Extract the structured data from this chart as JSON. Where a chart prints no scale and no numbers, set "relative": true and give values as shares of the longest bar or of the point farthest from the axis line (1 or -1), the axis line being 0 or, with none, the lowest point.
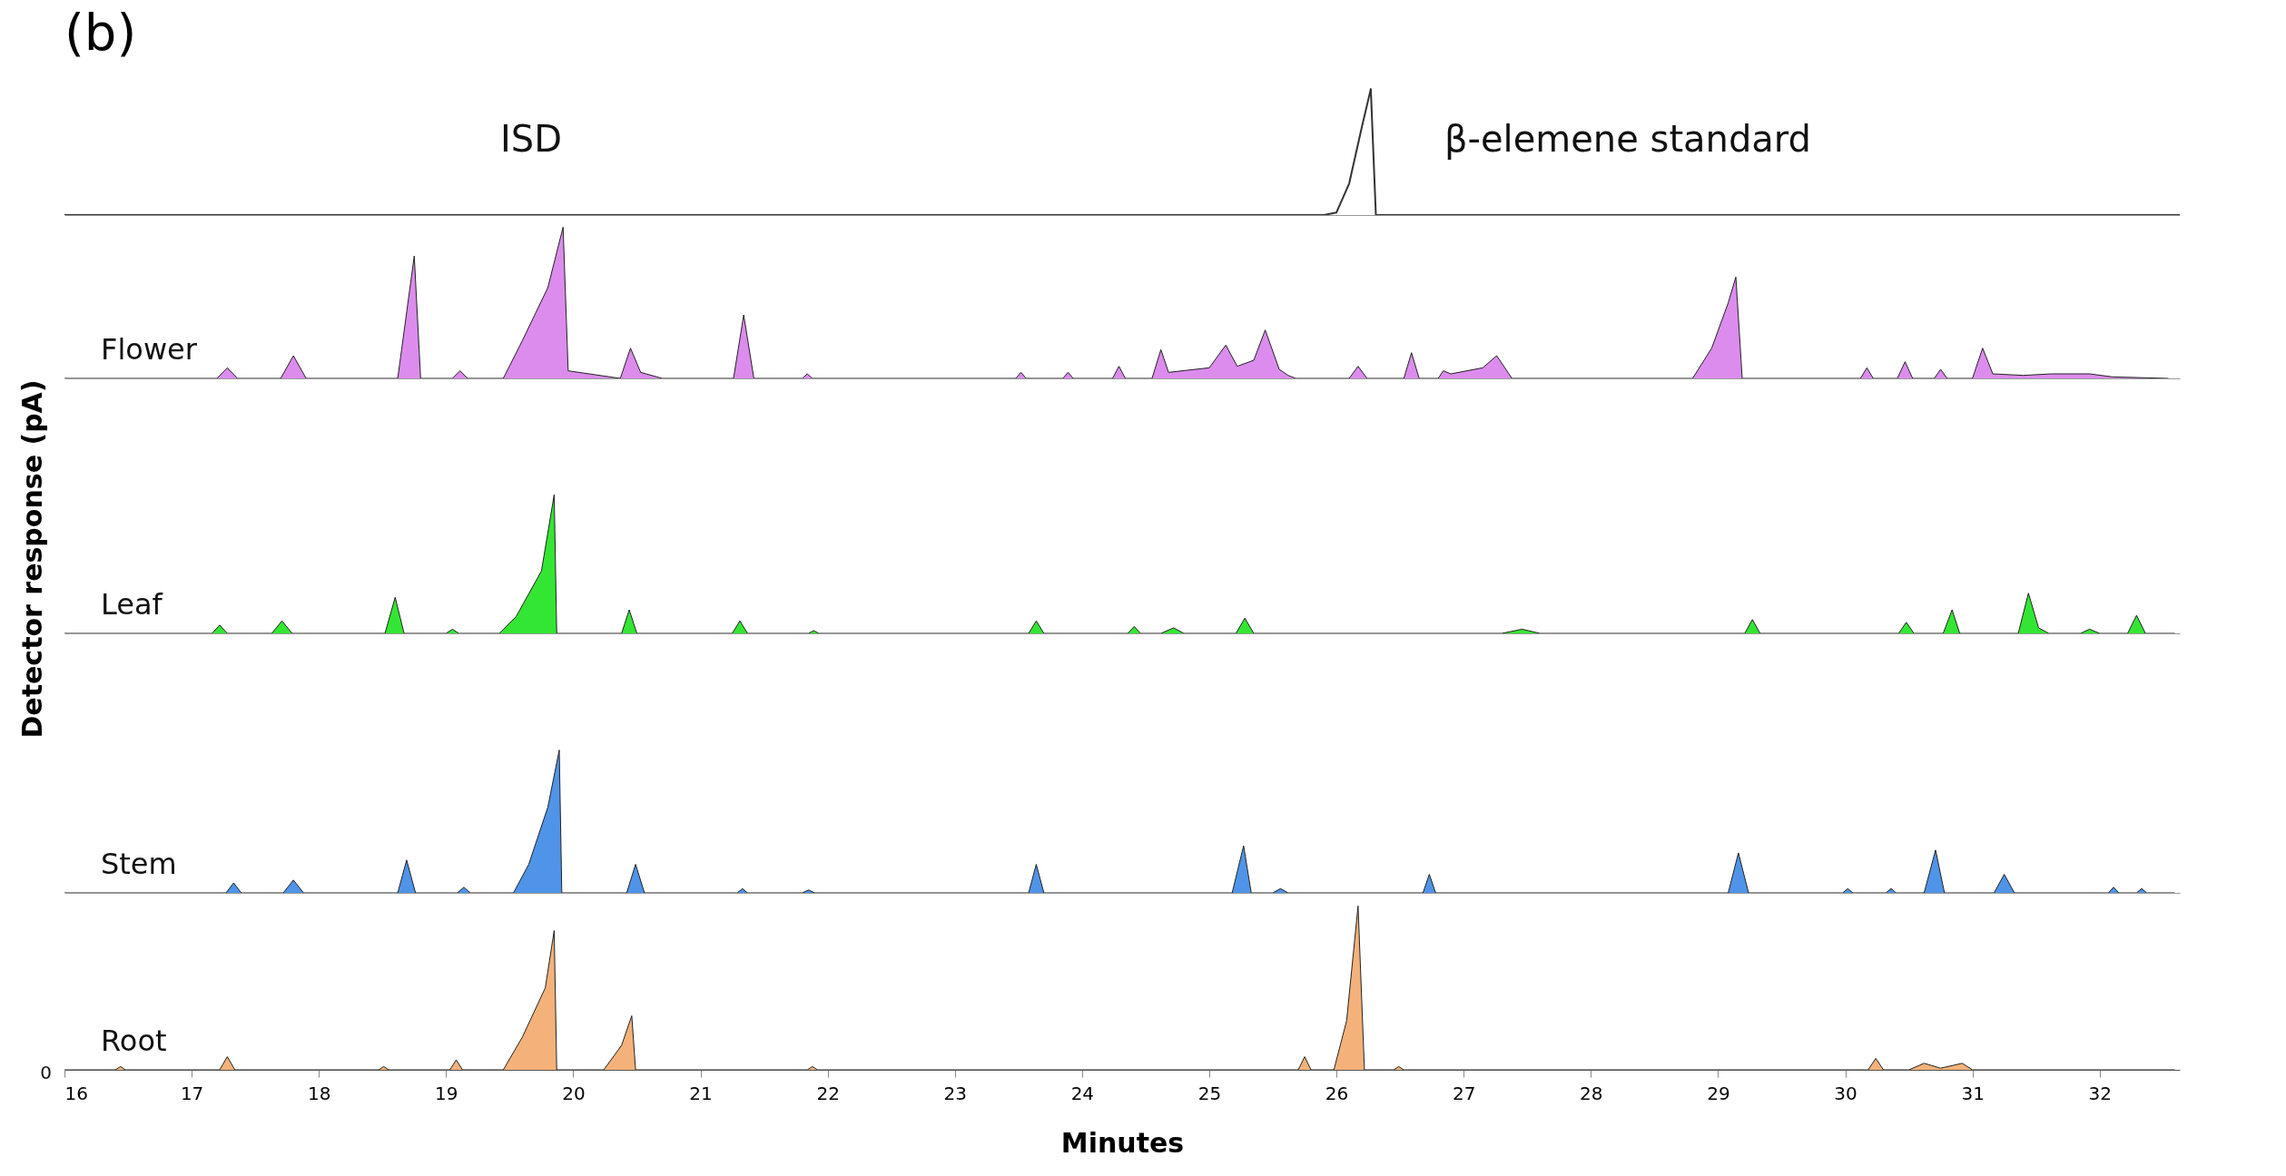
{
  "chart_data": [
    {
      "type": "line",
      "title": "(b)",
      "relative": true,
      "xlim": [
        16,
        32.63
      ],
      "tick_labels": false,
      "annotations": [
        "ISD",
        "β-elemene standard"
      ],
      "x": [
        16,
        25.9,
        26.0,
        26.1,
        26.2,
        26.27,
        26.31,
        32.63
      ],
      "series": [
        {
          "color": "#333333",
          "values": [
            0,
            0,
            0.02,
            0.25,
            0.7,
            1,
            0,
            0
          ]
        }
      ]
    },
    {
      "type": "area",
      "relative": true,
      "xlim": [
        16,
        32.63
      ],
      "tick_labels": false,
      "x": [
        16,
        17.2,
        17.28,
        17.36,
        17.7,
        17.8,
        17.9,
        18.62,
        18.75,
        18.8,
        19.05,
        19.11,
        19.17,
        19.45,
        19.6,
        19.8,
        19.92,
        19.96,
        20.37,
        20.45,
        20.53,
        20.7,
        21.26,
        21.34,
        21.42,
        21.8,
        21.84,
        21.88,
        23.48,
        23.52,
        23.56,
        23.85,
        23.89,
        23.93,
        24.24,
        24.29,
        24.34,
        24.55,
        24.62,
        24.68,
        25.0,
        25.13,
        25.22,
        25.35,
        25.44,
        25.55,
        25.62,
        25.68,
        26.1,
        26.17,
        26.24,
        26.53,
        26.59,
        26.65,
        26.8,
        26.84,
        26.9,
        27.15,
        27.26,
        27.38,
        28.8,
        28.95,
        29.08,
        29.14,
        29.19,
        30.12,
        30.17,
        30.22,
        30.41,
        30.47,
        30.53,
        30.7,
        30.75,
        30.8,
        31.0,
        31.08,
        31.16,
        31.4,
        31.62,
        31.92,
        32.1,
        32.54
      ],
      "series": [
        {
          "name": "Flower",
          "color": "#dc8ced",
          "values": [
            0,
            0,
            0.07,
            0,
            0,
            0.15,
            0,
            0,
            0.81,
            0,
            0,
            0.05,
            0,
            0,
            0.25,
            0.6,
            1,
            0.05,
            0,
            0.2,
            0.04,
            0,
            0,
            0.42,
            0,
            0,
            0.03,
            0,
            0,
            0.04,
            0,
            0,
            0.04,
            0,
            0,
            0.08,
            0,
            0,
            0.19,
            0.04,
            0.07,
            0.22,
            0.08,
            0.12,
            0.32,
            0.06,
            0.02,
            0,
            0,
            0.08,
            0,
            0,
            0.17,
            0,
            0,
            0.05,
            0.03,
            0.07,
            0.15,
            0,
            0,
            0.2,
            0.5,
            0.67,
            0,
            0,
            0.07,
            0,
            0,
            0.11,
            0,
            0,
            0.06,
            0,
            0,
            0.2,
            0.03,
            0.02,
            0.03,
            0.03,
            0.01,
            0
          ]
        }
      ]
    },
    {
      "type": "area",
      "relative": true,
      "xlim": [
        16,
        32.63
      ],
      "tick_labels": false,
      "ylabel": "Detector response (pA)",
      "x": [
        16,
        17.16,
        17.22,
        17.28,
        17.63,
        17.71,
        17.79,
        18.52,
        18.6,
        18.67,
        19.0,
        19.05,
        19.1,
        19.42,
        19.55,
        19.75,
        19.85,
        19.87,
        20.38,
        20.44,
        20.5,
        21.25,
        21.31,
        21.37,
        21.85,
        21.89,
        21.93,
        23.58,
        23.64,
        23.7,
        24.36,
        24.41,
        24.46,
        24.62,
        24.72,
        24.8,
        25.21,
        25.28,
        25.35,
        27.3,
        27.46,
        27.6,
        29.21,
        29.27,
        29.33,
        30.42,
        30.48,
        30.54,
        30.77,
        30.84,
        30.9,
        31.36,
        31.44,
        31.52,
        31.6,
        31.85,
        31.92,
        32.0,
        32.22,
        32.29,
        32.36,
        32.59
      ],
      "series": [
        {
          "name": "Leaf",
          "color": "#33e633",
          "values": [
            0,
            0,
            0.06,
            0,
            0,
            0.09,
            0,
            0,
            0.26,
            0,
            0,
            0.03,
            0,
            0,
            0.12,
            0.45,
            1,
            0,
            0,
            0.17,
            0,
            0,
            0.09,
            0,
            0,
            0.02,
            0,
            0,
            0.09,
            0,
            0,
            0.05,
            0,
            0,
            0.04,
            0,
            0,
            0.11,
            0,
            0,
            0.03,
            0,
            0,
            0.1,
            0,
            0,
            0.08,
            0,
            0,
            0.17,
            0,
            0,
            0.29,
            0.04,
            0,
            0,
            0.03,
            0,
            0,
            0.13,
            0,
            0
          ]
        }
      ]
    },
    {
      "type": "area",
      "relative": true,
      "xlim": [
        16,
        32.63
      ],
      "tick_labels": false,
      "x": [
        16,
        17.27,
        17.33,
        17.39,
        17.72,
        17.8,
        17.88,
        18.62,
        18.69,
        18.76,
        19.09,
        19.14,
        19.19,
        19.53,
        19.65,
        19.8,
        19.89,
        19.91,
        20.42,
        20.49,
        20.56,
        21.29,
        21.33,
        21.37,
        21.8,
        21.85,
        21.9,
        23.58,
        23.64,
        23.7,
        25.18,
        25.27,
        25.33,
        25.5,
        25.56,
        25.62,
        26.68,
        26.73,
        26.78,
        29.08,
        29.16,
        29.24,
        29.98,
        30.02,
        30.06,
        30.32,
        30.36,
        30.4,
        30.62,
        30.71,
        30.78,
        31.17,
        31.25,
        31.33,
        32.07,
        32.11,
        32.15,
        32.29,
        32.33,
        32.37,
        32.59
      ],
      "series": [
        {
          "name": "Stem",
          "color": "#4f94e8",
          "values": [
            0,
            0,
            0.07,
            0,
            0,
            0.09,
            0,
            0,
            0.23,
            0,
            0,
            0.04,
            0,
            0,
            0.2,
            0.6,
            1,
            0,
            0,
            0.2,
            0,
            0,
            0.03,
            0,
            0,
            0.02,
            0,
            0,
            0.2,
            0,
            0,
            0.33,
            0,
            0,
            0.03,
            0,
            0,
            0.13,
            0,
            0,
            0.28,
            0,
            0,
            0.03,
            0,
            0,
            0.03,
            0,
            0,
            0.3,
            0,
            0,
            0.13,
            0,
            0,
            0.04,
            0,
            0,
            0.03,
            0,
            0
          ]
        }
      ]
    },
    {
      "type": "area",
      "relative": true,
      "xlim": [
        16,
        32.63
      ],
      "tick_labels": "x",
      "xlabel": "Minutes",
      "xticks": [
        16,
        17,
        18,
        19,
        20,
        21,
        22,
        23,
        24,
        25,
        26,
        27,
        28,
        29,
        30,
        31,
        32
      ],
      "annotations": [
        "0"
      ],
      "x": [
        16,
        16.4,
        16.44,
        16.48,
        17.22,
        17.28,
        17.34,
        18.47,
        18.51,
        18.55,
        19.03,
        19.08,
        19.13,
        19.45,
        19.6,
        19.78,
        19.85,
        19.87,
        20.24,
        20.38,
        20.46,
        20.49,
        21.84,
        21.88,
        21.92,
        25.7,
        25.75,
        25.8,
        25.98,
        26.08,
        26.17,
        26.22,
        26.45,
        26.49,
        26.53,
        30.18,
        30.24,
        30.3,
        30.5,
        30.62,
        30.75,
        30.92,
        31.0,
        32.59
      ],
      "series": [
        {
          "name": "Root",
          "color": "#f4b27a",
          "values": [
            0,
            0,
            0.02,
            0,
            0,
            0.08,
            0,
            0,
            0.02,
            0,
            0,
            0.06,
            0,
            0,
            0.2,
            0.5,
            0.85,
            0,
            0,
            0.15,
            0.33,
            0,
            0,
            0.02,
            0,
            0,
            0.08,
            0,
            0,
            0.3,
            1,
            0,
            0,
            0.02,
            0,
            0,
            0.07,
            0,
            0,
            0.04,
            0.01,
            0.04,
            0,
            0
          ]
        }
      ]
    }
  ]
}
